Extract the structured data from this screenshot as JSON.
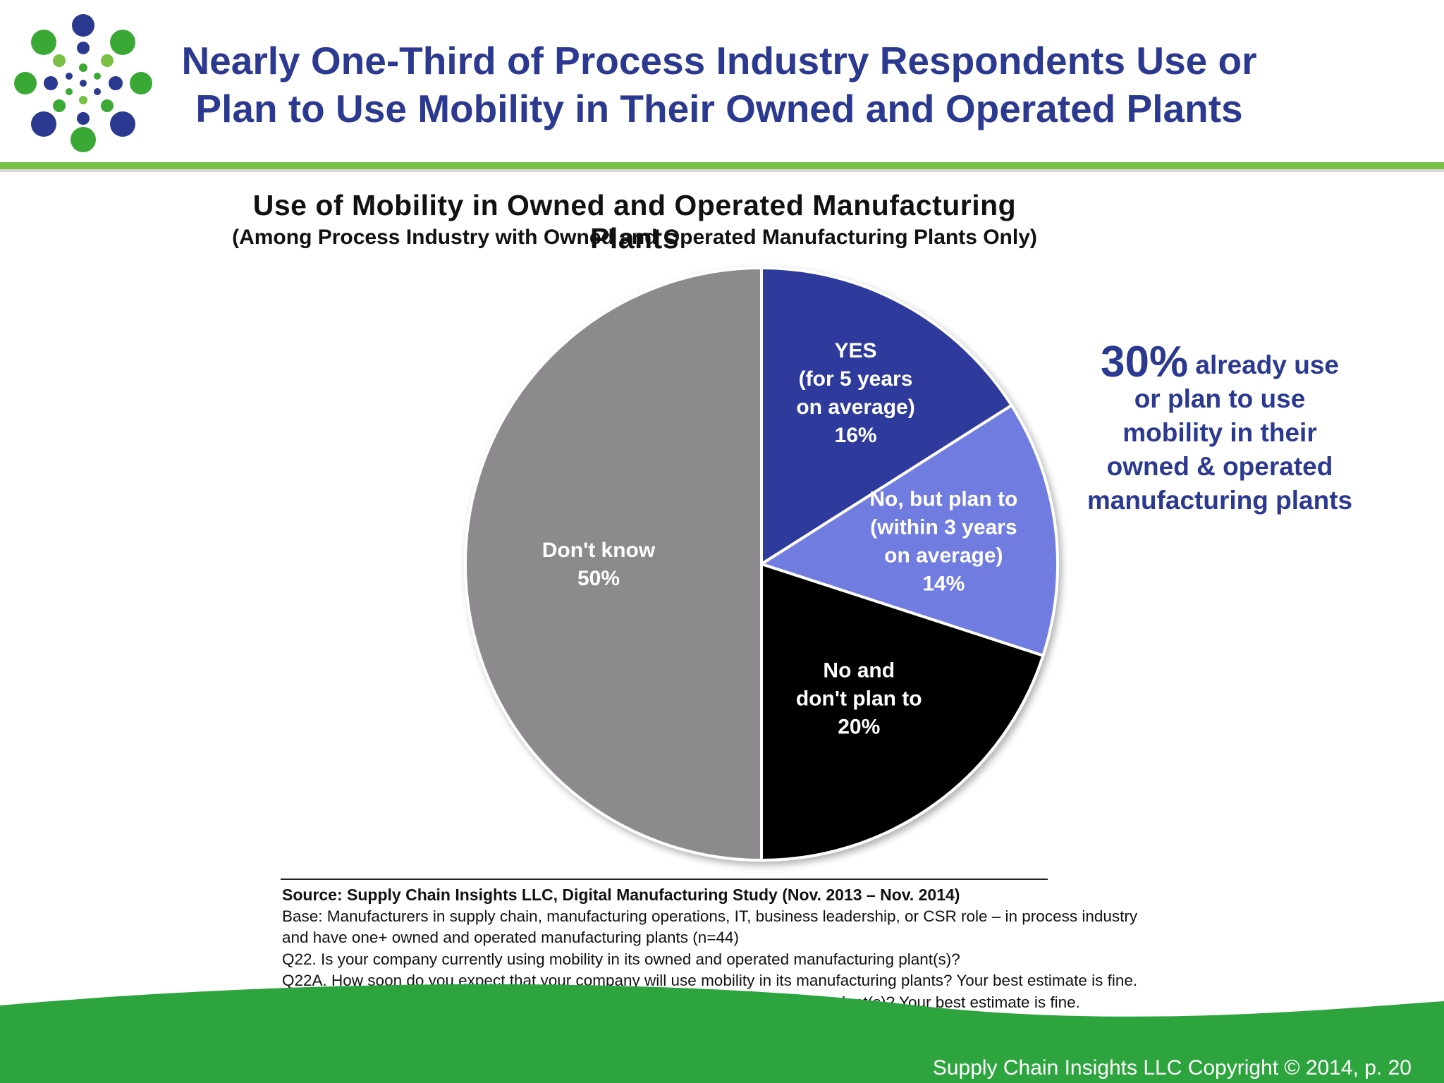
{
  "header": {
    "title_line1": "Nearly One-Third of Process Industry Respondents Use or",
    "title_line2": "Plan to Use Mobility in Their Owned and Operated Plants"
  },
  "chart_data": {
    "type": "pie",
    "title": "Use of Mobility in Owned and Operated Manufacturing Plants",
    "subtitle": "(Among Process Industry with Owned and Operated Manufacturing Plants Only)",
    "slices": [
      {
        "label_lines": [
          "YES",
          "(for 5 years",
          "on average)",
          "16%"
        ],
        "value": 16,
        "color": "#2e3a9c",
        "label_color": "#ffffff"
      },
      {
        "label_lines": [
          "No, but plan to",
          "(within 3 years",
          "on average)",
          "14%"
        ],
        "value": 14,
        "color": "#6f7ce0",
        "label_color": "#ffffff"
      },
      {
        "label_lines": [
          "No and",
          "don't plan to",
          "20%"
        ],
        "value": 20,
        "color": "#050505",
        "label_color": "#ffffff"
      },
      {
        "label_lines": [
          "Don't know",
          "50%"
        ],
        "value": 50,
        "color": "#8c8a8c",
        "label_color": "#ffffff"
      }
    ]
  },
  "callout": {
    "big": "30%",
    "first": " already use",
    "rest": "or plan to use\nmobility in their\nowned & operated\nmanufacturing plants"
  },
  "source": {
    "source_line": "Source:  Supply Chain Insights LLC, Digital Manufacturing Study (Nov. 2013 – Nov. 2014)",
    "base_line1": "Base: Manufacturers in supply chain, manufacturing operations, IT, business leadership, or CSR role – in process industry",
    "base_line2": "and have one+ owned and operated manufacturing plants (n=44)",
    "q22": "Q22. Is your company currently using mobility in its owned and operated manufacturing plant(s)?",
    "q22a": "Q22A. How soon do you expect that your company will use mobility in its manufacturing plants? Your best estimate is fine.",
    "q23": "Q23. For how long has your company been using mobility in its manufacturing plant(s)?  Your best estimate is fine."
  },
  "footer": {
    "copyright": "Supply Chain Insights LLC Copyright © 2014, p. 20"
  },
  "colors": {
    "title_blue": "#2b3990",
    "rule_green": "#7ac143",
    "footer_green": "#2ea43f"
  }
}
